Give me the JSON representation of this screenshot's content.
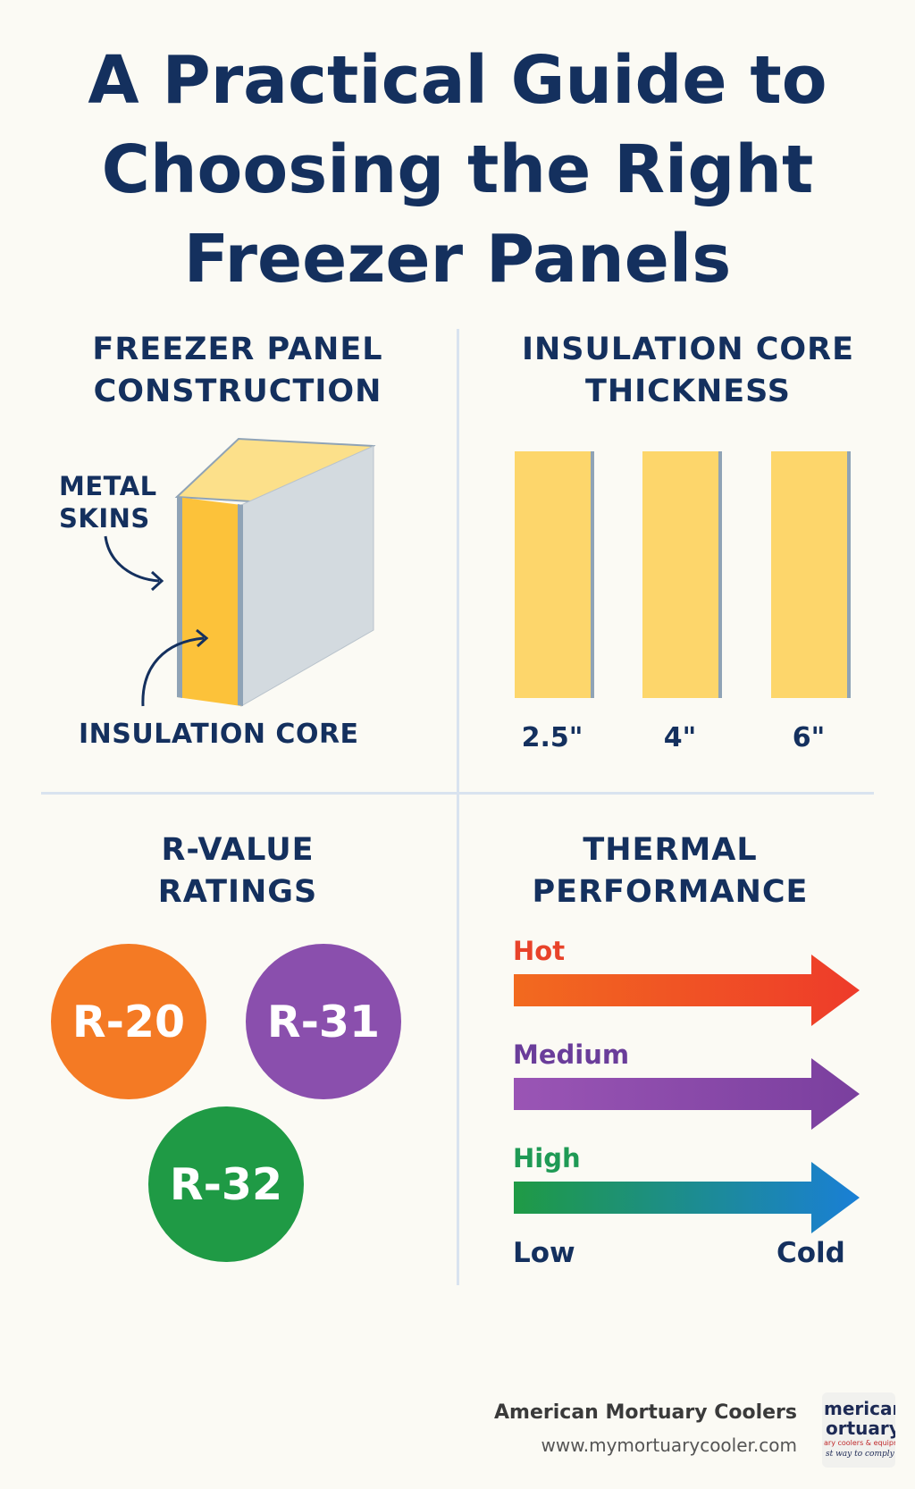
{
  "title": {
    "line1": "A Practical Guide to",
    "line2": "Choosing the Right",
    "line3": "Freezer Panels"
  },
  "construction": {
    "heading_line1": "FREEZER PANEL",
    "heading_line2": "CONSTRUCTION",
    "metal_skins_line1": "METAL",
    "metal_skins_line2": "SKINS",
    "insulation_core": "INSULATION CORE",
    "colors": {
      "core": "#fcc23a",
      "skin": "#d3dadf",
      "top": "#fce08a",
      "edge": "#8fa3b6"
    }
  },
  "thickness": {
    "heading_line1": "INSULATION CORE",
    "heading_line2": "THICKNESS",
    "panels": [
      {
        "label": "2.5\""
      },
      {
        "label": "4\""
      },
      {
        "label": "6\""
      }
    ],
    "colors": {
      "panel": "#fdd66b",
      "edge": "#8fa3b6"
    }
  },
  "rvalue": {
    "heading_line1": "R-VALUE",
    "heading_line2": "RATINGS",
    "badges": [
      {
        "label": "R-20",
        "color": "#f47a24"
      },
      {
        "label": "R-31",
        "color": "#8a4fad"
      },
      {
        "label": "R-32",
        "color": "#1f9a45"
      }
    ]
  },
  "thermal": {
    "heading_line1": "THERMAL",
    "heading_line2": "PERFORMANCE",
    "arrows": [
      {
        "label": "Hot",
        "label_color": "#e8432a",
        "from": "#f26a1f",
        "to": "#ee3b2a"
      },
      {
        "label": "Medium",
        "label_color": "#6a3d9a",
        "from": "#9a55b5",
        "to": "#7a3f9e"
      },
      {
        "label": "High",
        "label_color": "#1f9a55",
        "from": "#1f9a45",
        "to": "#1a7fd6"
      }
    ],
    "scale_low": "Low",
    "scale_high": "Cold"
  },
  "footer": {
    "company": "American Mortuary Coolers",
    "url": "www.mymortuarycooler.com",
    "logo_line1": "merican",
    "logo_line2": "ortuary",
    "logo_line3": "ary coolers & equipment",
    "logo_line4": "st way to comply"
  }
}
